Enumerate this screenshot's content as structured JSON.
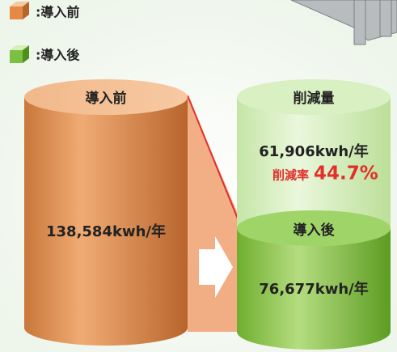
{
  "legend": [
    {
      "label": ":導入前"
    },
    {
      "label": ":導入後"
    }
  ],
  "before": {
    "title": "導入前",
    "value": "138,584kwh/年"
  },
  "reduction": {
    "title": "削減量",
    "value": "61,906kwh/年",
    "rate_label": "削減率",
    "rate": "44.7%"
  },
  "after": {
    "title": "導入後",
    "value": "76,677kwh/年"
  }
}
